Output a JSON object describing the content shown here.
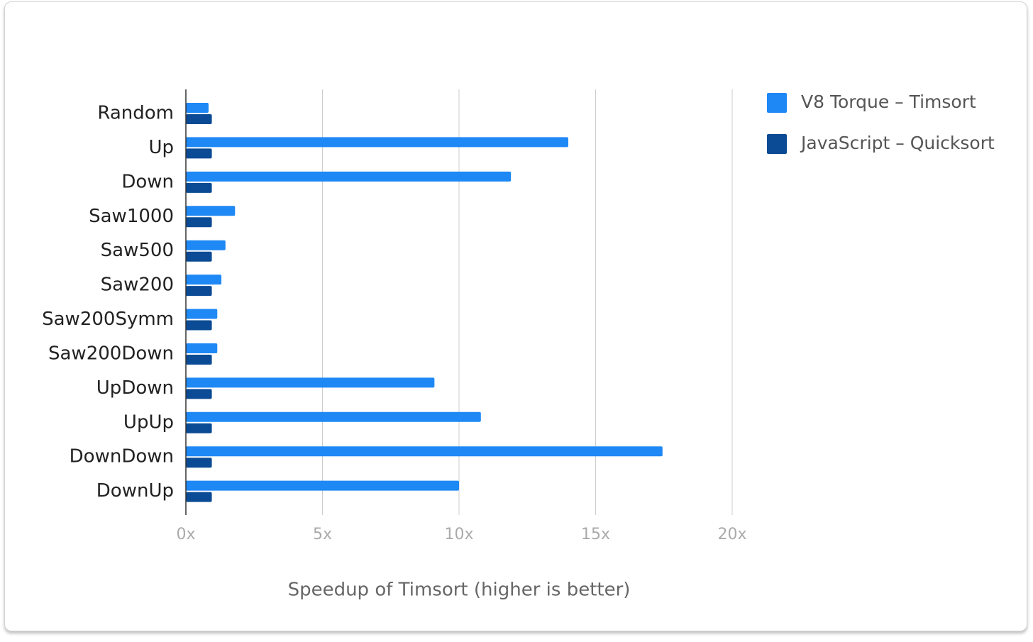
{
  "chart_data": {
    "type": "hbar",
    "x_label": "Speedup of Timsort (higher is better)",
    "categories": [
      "Random",
      "Up",
      "Down",
      "Saw1000",
      "Saw500",
      "Saw200",
      "Saw200Symm",
      "Saw200Down",
      "UpDown",
      "UpUp",
      "DownDown",
      "DownUp"
    ],
    "series": [
      {
        "name": "V8 Torque – Timsort",
        "color": "#1e88f5",
        "values": [
          0.83,
          14.0,
          11.9,
          1.8,
          1.45,
          1.3,
          1.15,
          1.15,
          9.1,
          10.8,
          17.45,
          10.0
        ]
      },
      {
        "name": "JavaScript – Quicksort",
        "color": "#0b4a94",
        "values": [
          0.95,
          0.95,
          0.95,
          0.95,
          0.95,
          0.95,
          0.95,
          0.95,
          0.95,
          0.95,
          0.95,
          0.95
        ]
      }
    ],
    "xlim": [
      0,
      20
    ],
    "xticks": [
      {
        "value": 0,
        "label": "0x"
      },
      {
        "value": 5,
        "label": "5x"
      },
      {
        "value": 10,
        "label": "10x"
      },
      {
        "value": 15,
        "label": "15x"
      },
      {
        "value": 20,
        "label": "20x"
      }
    ],
    "grid": true,
    "legend": "right"
  }
}
